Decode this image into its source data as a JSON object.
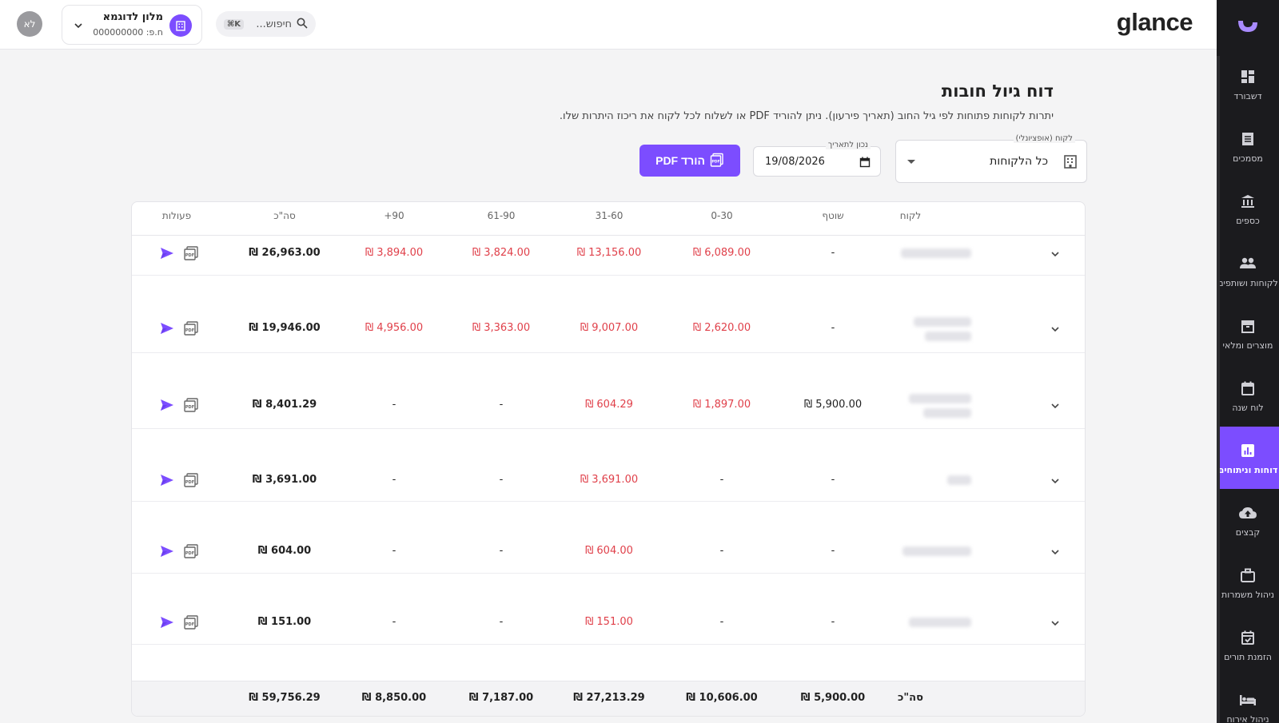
{
  "app": {
    "brand": "glance",
    "search_placeholder": "חיפוש...",
    "search_shortcut": "K⌘",
    "business_name": "מלון לדוגמא",
    "business_id": "ח.פ: 000000000",
    "avatar_initials": "לא"
  },
  "sidebar": {
    "items": [
      {
        "label": "דשבורד",
        "icon": "dashboard-icon"
      },
      {
        "label": "מסמכים",
        "icon": "documents-icon"
      },
      {
        "label": "כספים",
        "icon": "bank-icon"
      },
      {
        "label": "לקוחות ושותפים",
        "icon": "people-icon"
      },
      {
        "label": "מוצרים ומלאי",
        "icon": "archive-icon"
      },
      {
        "label": "לוח שנה",
        "icon": "calendar-icon"
      },
      {
        "label": "דוחות וניתוחים",
        "icon": "reports-icon",
        "active": true
      },
      {
        "label": "קבצים",
        "icon": "cloud-upload-icon"
      },
      {
        "label": "ניהול משמרות",
        "icon": "briefcase-icon"
      },
      {
        "label": "הזמנת תורים",
        "icon": "calendar-check-icon"
      },
      {
        "label": "ניהול אירוח",
        "icon": "bed-icon"
      }
    ]
  },
  "page": {
    "title": "דוח גיול חובות",
    "description": "יתרות לקוחות פתוחות לפי גיל החוב (תאריך פירעון). ניתן להוריד PDF או לשלוח לכל לקוח את ריכוז היתרות שלו."
  },
  "filters": {
    "customer_label": "לקוח (אופציונלי)",
    "customer_value": "כל הלקוחות",
    "date_label": "נכון לתאריך",
    "date_value": "19/08/2026",
    "download_button": "הורד PDF"
  },
  "table": {
    "columns": [
      "לקוח",
      "שוטף",
      "0-30",
      "31-60",
      "61-90",
      "+90",
      "סה\"כ",
      "פעולות"
    ],
    "rows": [
      {
        "current": "-",
        "d0_30": "₪ 6,089.00",
        "d31_60": "₪ 13,156.00",
        "d61_90": "₪ 3,824.00",
        "d90": "₪ 3,894.00",
        "total": "₪ 26,963.00"
      },
      {
        "current": "-",
        "d0_30": "₪ 2,620.00",
        "d31_60": "₪ 9,007.00",
        "d61_90": "₪ 3,363.00",
        "d90": "₪ 4,956.00",
        "total": "₪ 19,946.00"
      },
      {
        "current": "₪ 5,900.00",
        "d0_30": "₪ 1,897.00",
        "d31_60": "₪ 604.29",
        "d61_90": "-",
        "d90": "-",
        "total": "₪ 8,401.29"
      },
      {
        "current": "-",
        "d0_30": "-",
        "d31_60": "₪ 3,691.00",
        "d61_90": "-",
        "d90": "-",
        "total": "₪ 3,691.00"
      },
      {
        "current": "-",
        "d0_30": "-",
        "d31_60": "₪ 604.00",
        "d61_90": "-",
        "d90": "-",
        "total": "₪ 604.00"
      },
      {
        "current": "-",
        "d0_30": "-",
        "d31_60": "₪ 151.00",
        "d61_90": "-",
        "d90": "-",
        "total": "₪ 151.00"
      }
    ],
    "totals": {
      "label": "סה\"כ",
      "current": "₪ 5,900.00",
      "d0_30": "₪ 10,606.00",
      "d31_60": "₪ 27,213.29",
      "d61_90": "₪ 7,187.00",
      "d90": "₪ 8,850.00",
      "total": "₪ 59,756.29"
    }
  },
  "colors": {
    "accent": "#7c4dff",
    "negative": "#e0404a",
    "sidebar_bg": "#1b1b1e"
  }
}
